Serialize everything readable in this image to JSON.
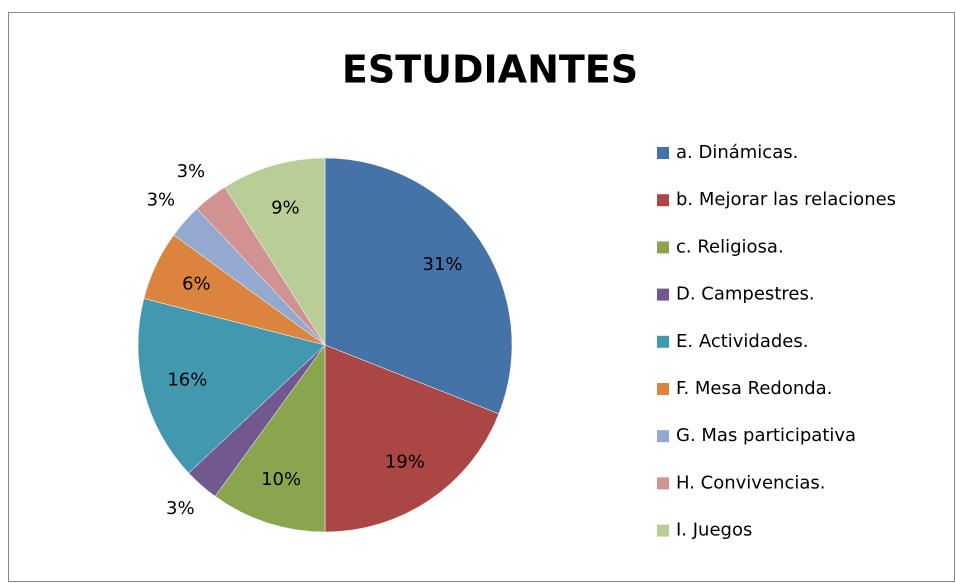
{
  "chart_data": {
    "type": "pie",
    "title": "ESTUDIANTES",
    "categories": [
      "a. Dinámicas.",
      "b. Mejorar las relaciones",
      "c. Religiosa.",
      "D. Campestres.",
      "E. Actividades.",
      "F. Mesa Redonda.",
      "G. Mas participativa",
      "H. Convivencias.",
      "I. Juegos"
    ],
    "values": [
      31,
      19,
      10,
      3,
      16,
      6,
      3,
      3,
      9
    ],
    "value_labels": [
      "31%",
      "19%",
      "10%",
      "3%",
      "16%",
      "6%",
      "3%",
      "3%",
      "9%"
    ],
    "colors": [
      "#4572a7",
      "#aa4643",
      "#89a54e",
      "#71588f",
      "#4198af",
      "#db843d",
      "#93a9cf",
      "#d19392",
      "#b9cd96"
    ],
    "legend": "right"
  }
}
